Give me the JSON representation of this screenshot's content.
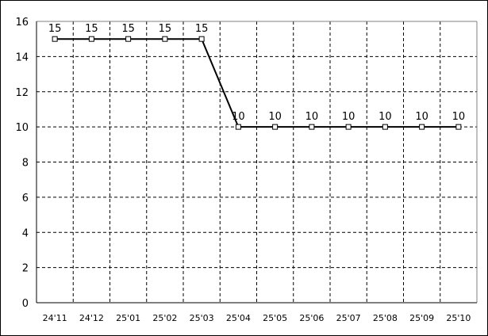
{
  "chart_data": {
    "type": "line",
    "categories": [
      "24'11",
      "24'12",
      "25'01",
      "25'02",
      "25'03",
      "25'04",
      "25'05",
      "25'06",
      "25'07",
      "25'08",
      "25'09",
      "25'10"
    ],
    "series": [
      {
        "values": [
          15,
          15,
          15,
          15,
          15,
          10,
          10,
          10,
          10,
          10,
          10,
          10
        ],
        "data_labels": [
          "15",
          "15",
          "15",
          "15",
          "15",
          "10",
          "10",
          "10",
          "10",
          "10",
          "10",
          "10"
        ]
      }
    ],
    "ylim": [
      0,
      16
    ],
    "yticks": [
      "0",
      "2",
      "4",
      "6",
      "8",
      "10",
      "12",
      "14",
      "16"
    ],
    "grid": true,
    "marker": "hollow-square",
    "line_color": "#000000",
    "grid_color": "#000000"
  }
}
